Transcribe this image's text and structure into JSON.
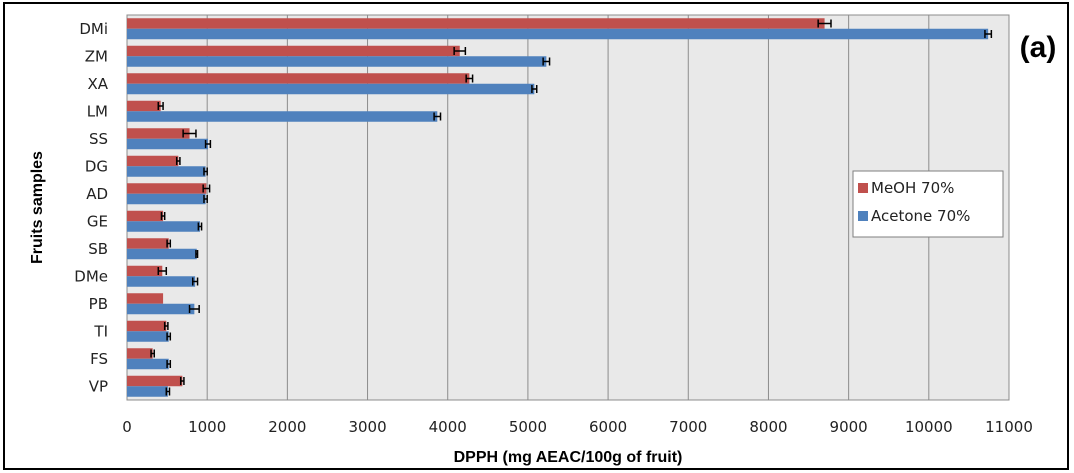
{
  "chart_data": {
    "type": "bar",
    "orientation": "horizontal",
    "panel_label": "(a)",
    "xlabel": "DPPH (mg AEAC/100g of fruit)",
    "ylabel": "Fruits samples",
    "xlim": [
      0,
      11000
    ],
    "xticks": [
      "0",
      "1000",
      "2000",
      "3000",
      "4000",
      "5000",
      "6000",
      "7000",
      "8000",
      "9000",
      "10000",
      "11000"
    ],
    "grid": "vertical",
    "legend_position": "right",
    "categories": [
      "DMi",
      "ZM",
      "XA",
      "LM",
      "SS",
      "DG",
      "AD",
      "GE",
      "SB",
      "DMe",
      "PB",
      "TI",
      "FS",
      "VP"
    ],
    "series": [
      {
        "name": "MeOH 70%",
        "color": "#c0504d",
        "values": [
          8700,
          4150,
          4270,
          420,
          780,
          640,
          990,
          450,
          520,
          440,
          450,
          490,
          320,
          690
        ],
        "errors": [
          80,
          70,
          40,
          30,
          80,
          20,
          40,
          20,
          20,
          50,
          0,
          20,
          20,
          20
        ]
      },
      {
        "name": "Acetone 70%",
        "color": "#4f81bd",
        "values": [
          10740,
          5230,
          5080,
          3870,
          1010,
          980,
          980,
          910,
          870,
          850,
          840,
          520,
          520,
          510
        ],
        "errors": [
          40,
          40,
          30,
          40,
          30,
          20,
          20,
          20,
          10,
          30,
          60,
          20,
          20,
          20
        ]
      }
    ]
  }
}
